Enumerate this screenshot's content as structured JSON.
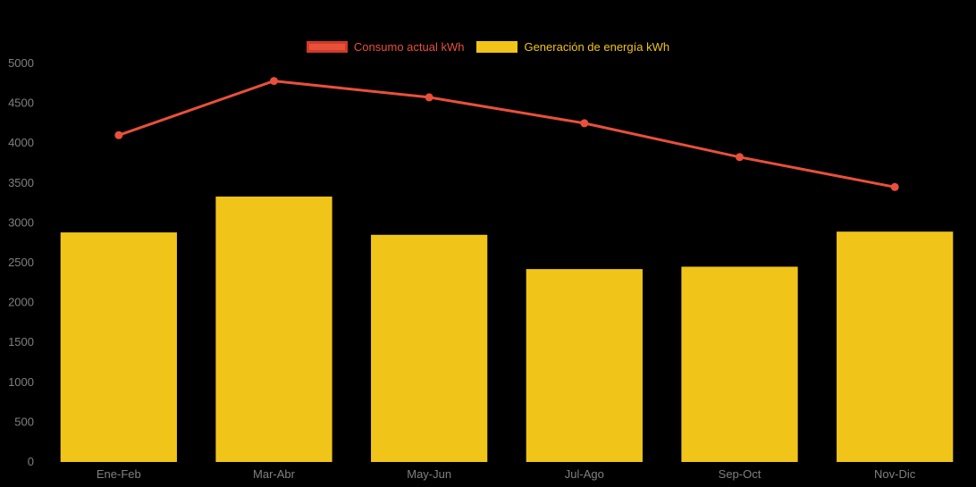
{
  "chart_data": {
    "type": "bar",
    "subtype": "bar-with-line-overlay",
    "title": "",
    "xlabel": "",
    "ylabel": "",
    "categories": [
      "Ene-Feb",
      "Mar-Abr",
      "May-Jun",
      "Jul-Ago",
      "Sep-Oct",
      "Nov-Dic"
    ],
    "series": [
      {
        "name": "Consumo actual kWh",
        "type": "line",
        "color": "#e8503b",
        "border_color": "#d03a26",
        "values": [
          4100,
          4780,
          4575,
          4250,
          3825,
          3450
        ]
      },
      {
        "name": "Generación de energía kWh",
        "type": "bar",
        "color": "#f0c419",
        "values": [
          2880,
          3330,
          2850,
          2420,
          2450,
          2890
        ]
      }
    ],
    "ylim": [
      0,
      5000
    ],
    "ytick_step": 500,
    "yticks": [
      0,
      500,
      1000,
      1500,
      2000,
      2500,
      3000,
      3500,
      4000,
      4500,
      5000
    ],
    "legend_position": "top",
    "grid": false,
    "axis_label_color": "#808080",
    "background": "#000000"
  },
  "legend": {
    "items": [
      {
        "label": "Consumo actual kWh",
        "color": "#e8503b"
      },
      {
        "label": "Generación de energía kWh",
        "color": "#f0c419"
      }
    ]
  }
}
